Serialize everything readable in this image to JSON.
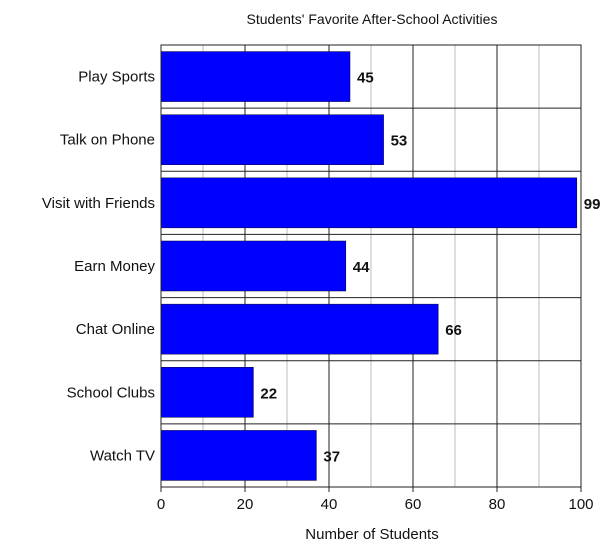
{
  "chart_data": {
    "type": "bar",
    "orientation": "horizontal",
    "title": "Students' Favorite After-School Activities",
    "xlabel": "Number of Students",
    "ylabel": "",
    "categories": [
      "Play Sports",
      "Talk on Phone",
      "Visit with Friends",
      "Earn Money",
      "Chat Online",
      "School Clubs",
      "Watch TV"
    ],
    "values": [
      45,
      53,
      99,
      44,
      66,
      22,
      37
    ],
    "xlim": [
      0,
      100
    ],
    "xticks": [
      "0",
      "20",
      "40",
      "60",
      "80",
      "100"
    ],
    "grid": true,
    "bar_color": "#0000ff",
    "data_labels": true
  }
}
